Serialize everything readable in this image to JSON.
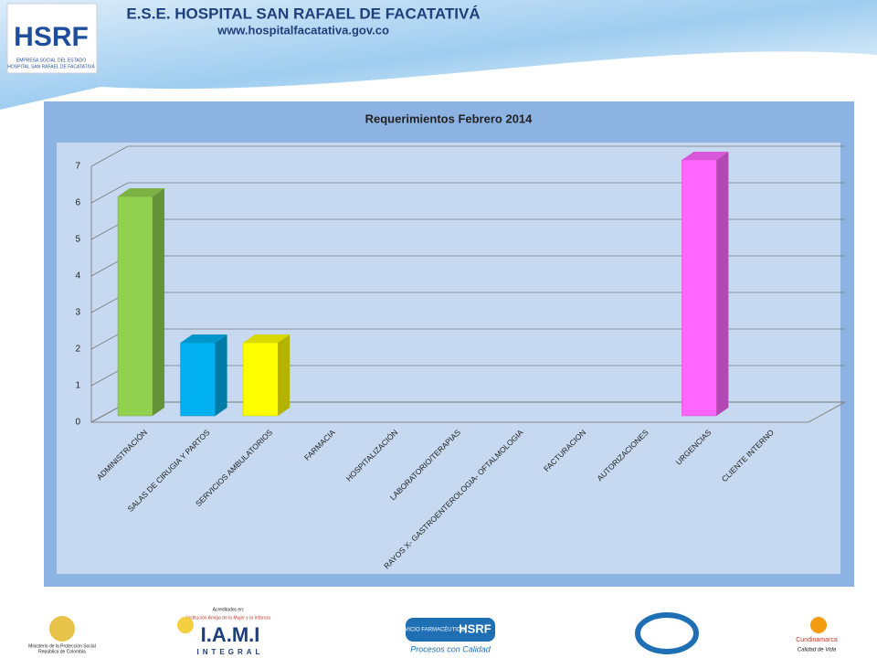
{
  "header": {
    "title": "E.S.E. HOSPITAL SAN RAFAEL DE FACATATIVÁ",
    "url": "www.hospitalfacatativa.gov.co",
    "logo": "HSRF",
    "logo_line1": "EMPRESA SOCIAL DEL ESTADO",
    "logo_line2": "HOSPITAL SAN RAFAEL DE FACATATIVÁ"
  },
  "footer": {
    "ministry": "Ministerio de la Protección Social",
    "ministry_sub": "República de Colombia",
    "accredited": "Acreditados en:",
    "iami_sub": "Institución Amiga de la Mujer y la Infancia",
    "iami": "I.A.M.I",
    "integral": "INTEGRAL",
    "pharma": "SERVICIO FARMACÉUTICO",
    "pharma_logo": "HSRF",
    "pharma_slogan": "Procesos con Calidad",
    "cund": "Cundinamarca",
    "cund_sub": "Calidad de Vida"
  },
  "chart_data": {
    "type": "bar3d",
    "title": "Requerimientos Febrero 2014",
    "categories": [
      "ADMINISTRACIÓN",
      "SALAS DE CIRUGIA Y PARTOS",
      "SERVICIOS AMBULATORIOS",
      "FARMACIA",
      "HOSPITALIZACIÓN",
      "LABORATORIO/TERAPIAS",
      "RAYOS X- GASTROENTEROLOGIA- OFTALMOLOGIA",
      "FACTURACION",
      "AUTORIZACIONES",
      "URGENCIAS",
      "CLIENTE INTERNO"
    ],
    "values": [
      6,
      2,
      2,
      0,
      0,
      0,
      0,
      0,
      0,
      7,
      0
    ],
    "colors": [
      "#92d050",
      "#00b0f0",
      "#ffff00",
      null,
      null,
      null,
      null,
      null,
      null,
      "#ff66ff",
      null
    ],
    "ylim": [
      0,
      7
    ],
    "yticks": [
      0,
      1,
      2,
      3,
      4,
      5,
      6,
      7
    ],
    "grid": true
  }
}
